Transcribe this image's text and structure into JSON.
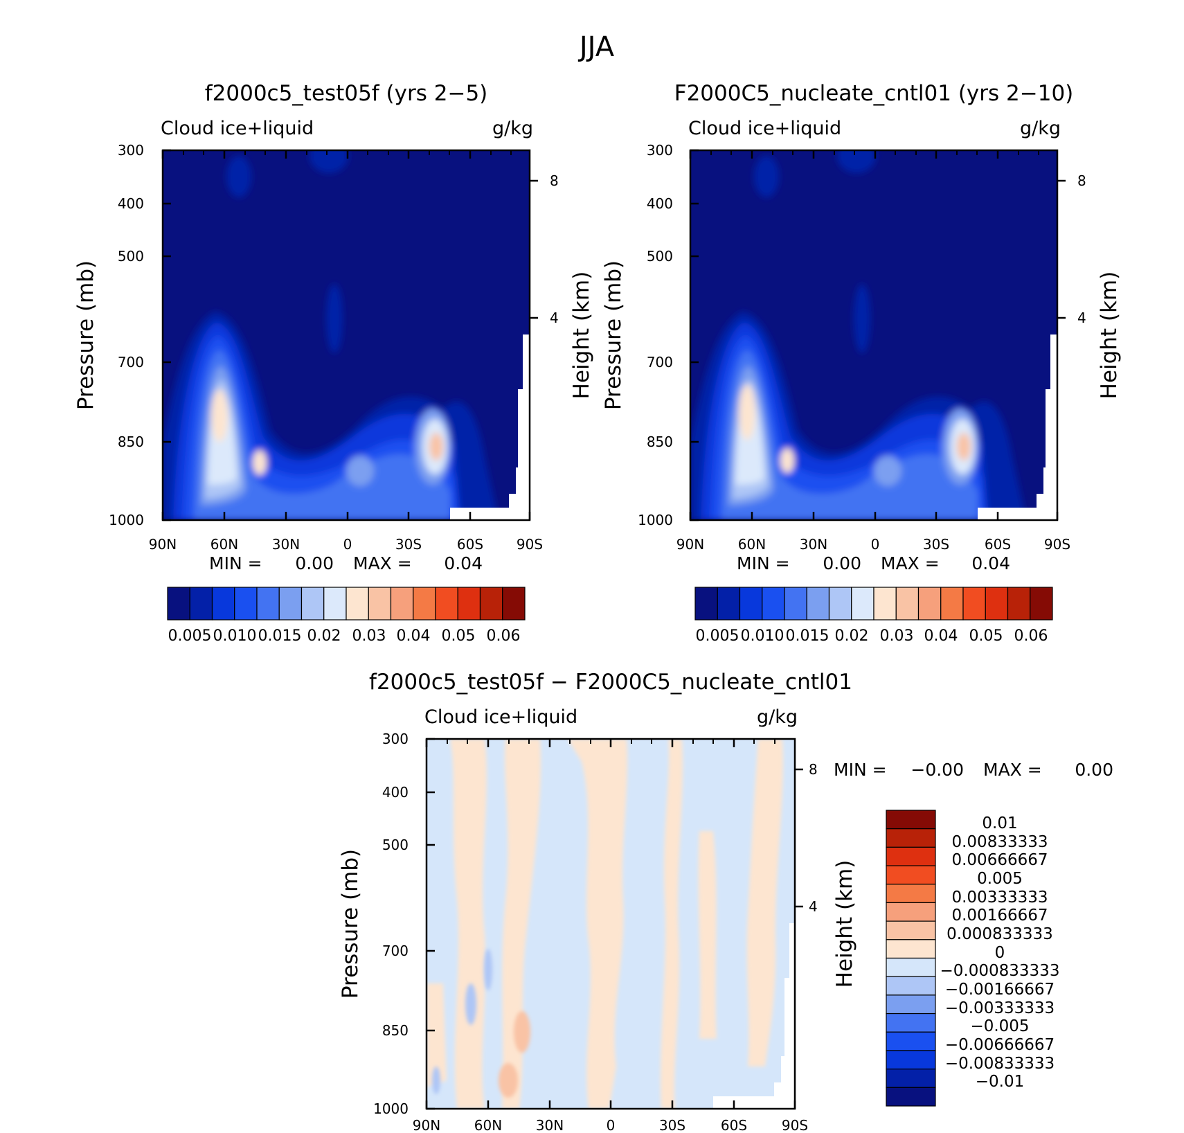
{
  "page_title": "JJA",
  "colors": {
    "panel_scale": [
      "#08117f",
      "#0320a8",
      "#0838dc",
      "#1a50f0",
      "#4373f2",
      "#7b9ff0",
      "#aec6f6",
      "#dce9fb",
      "#fde5d0",
      "#f9c3a5",
      "#f6a07c",
      "#f47a45",
      "#f14d21",
      "#de3010",
      "#b82208",
      "#850b05"
    ],
    "diff_scale": [
      "#850b05",
      "#b82208",
      "#de3010",
      "#f14d21",
      "#f47a45",
      "#f6a07c",
      "#f9c3a5",
      "#fde5d0",
      "#d5e6fa",
      "#aec6f6",
      "#7b9ff0",
      "#4373f2",
      "#1a50f0",
      "#0838dc",
      "#0320a8",
      "#08117f"
    ]
  },
  "chart_data": [
    {
      "type": "heatmap",
      "title": "f2000c5_test05f (yrs 2−5)",
      "variable_label": "Cloud ice+liquid",
      "units_label": "g/kg",
      "ylabel": "Pressure (mb)",
      "ylabel_right": "Height (km)",
      "x_ticklabels": [
        "90N",
        "60N",
        "30N",
        "0",
        "30S",
        "60S",
        "90S"
      ],
      "y_ticklabels": [
        "300",
        "400",
        "500",
        "700",
        "850",
        "1000"
      ],
      "y_right_ticklabels": [
        "8",
        "4"
      ],
      "min_label": "MIN =",
      "min_value": "0.00",
      "max_label": "MAX =",
      "max_value": "0.04",
      "colorbar_labels": [
        "0.005",
        "0.010",
        "0.015",
        "0.02",
        "0.03",
        "0.04",
        "0.05",
        "0.06"
      ],
      "grid": false
    },
    {
      "type": "heatmap",
      "title": "F2000C5_nucleate_cntl01 (yrs 2−10)",
      "variable_label": "Cloud ice+liquid",
      "units_label": "g/kg",
      "ylabel": "Pressure (mb)",
      "ylabel_right": "Height (km)",
      "x_ticklabels": [
        "90N",
        "60N",
        "30N",
        "0",
        "30S",
        "60S",
        "90S"
      ],
      "y_ticklabels": [
        "300",
        "400",
        "500",
        "700",
        "850",
        "1000"
      ],
      "y_right_ticklabels": [
        "8",
        "4"
      ],
      "min_label": "MIN =",
      "min_value": "0.00",
      "max_label": "MAX =",
      "max_value": "0.04",
      "colorbar_labels": [
        "0.005",
        "0.010",
        "0.015",
        "0.02",
        "0.03",
        "0.04",
        "0.05",
        "0.06"
      ],
      "grid": false
    },
    {
      "type": "heatmap",
      "title": "f2000c5_test05f − F2000C5_nucleate_cntl01",
      "variable_label": "Cloud ice+liquid",
      "units_label": "g/kg",
      "ylabel": "Pressure (mb)",
      "ylabel_right": "Height (km)",
      "x_ticklabels": [
        "90N",
        "60N",
        "30N",
        "0",
        "30S",
        "60S",
        "90S"
      ],
      "y_ticklabels": [
        "300",
        "400",
        "500",
        "700",
        "850",
        "1000"
      ],
      "y_right_ticklabels": [
        "8",
        "4"
      ],
      "min_label": "MIN =",
      "min_value": "−0.00",
      "max_label": "MAX =",
      "max_value": "0.00",
      "colorbar_labels": [
        "0.01",
        "0.00833333",
        "0.00666667",
        "0.005",
        "0.00333333",
        "0.00166667",
        "0.000833333",
        "0",
        "−0.000833333",
        "−0.00166667",
        "−0.00333333",
        "−0.005",
        "−0.00666667",
        "−0.00833333",
        "−0.01"
      ],
      "grid": false
    }
  ]
}
